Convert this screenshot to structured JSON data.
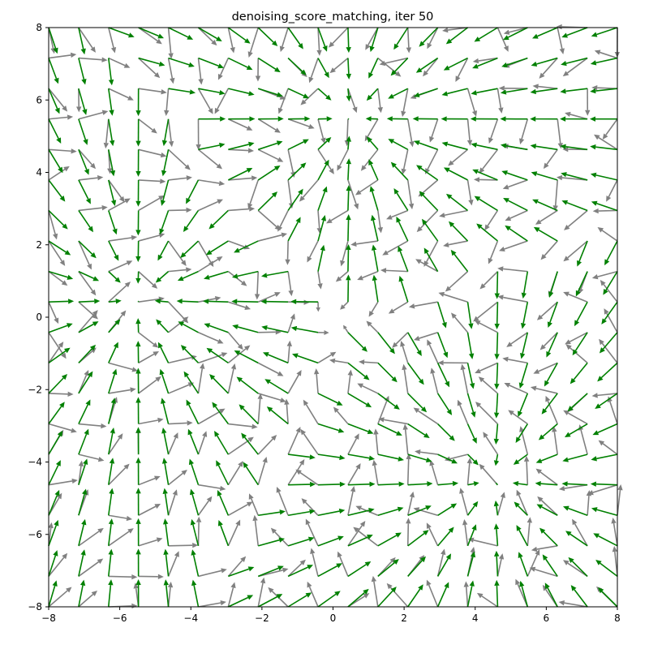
{
  "chart_data": {
    "type": "quiver",
    "title": "denoising_score_matching, iter 50",
    "xlabel": "",
    "ylabel": "",
    "xlim": [
      -8,
      8
    ],
    "ylim": [
      -8,
      8
    ],
    "xticks": [
      -8,
      -6,
      -4,
      -2,
      0,
      2,
      4,
      6,
      8
    ],
    "yticks": [
      -8,
      -6,
      -4,
      -2,
      0,
      2,
      4,
      6,
      8
    ],
    "xtick_labels": [
      "−8",
      "−6",
      "−4",
      "−2",
      "0",
      "2",
      "4",
      "6",
      "8"
    ],
    "ytick_labels": [
      "−8",
      "−6",
      "−4",
      "−2",
      "0",
      "2",
      "4",
      "6",
      "8"
    ],
    "grid": false,
    "legend": "none",
    "grid_points": {
      "n": 20,
      "start": -8,
      "stop": 8,
      "description": "20 x 20 evenly spaced grid over [-8, 8] x [-8, 8]"
    },
    "series": [
      {
        "role": "estimated score field",
        "color": "#808080",
        "field": "tanh-saturated direction toward center (0, 0) with mixing noise",
        "center": [
          0,
          0
        ],
        "saturation_scale": 1.6,
        "vector_length": 1.0,
        "noise": 0.35
      },
      {
        "role": "true score field",
        "color": "#008000",
        "field": "tanh-saturated direction toward nearest of three modes",
        "modes": [
          [
            -5.5,
            0.5
          ],
          [
            0.5,
            5.5
          ],
          [
            4.5,
            -4.5
          ]
        ],
        "saturation_scale": 1.6,
        "vector_length": 1.0
      }
    ]
  }
}
